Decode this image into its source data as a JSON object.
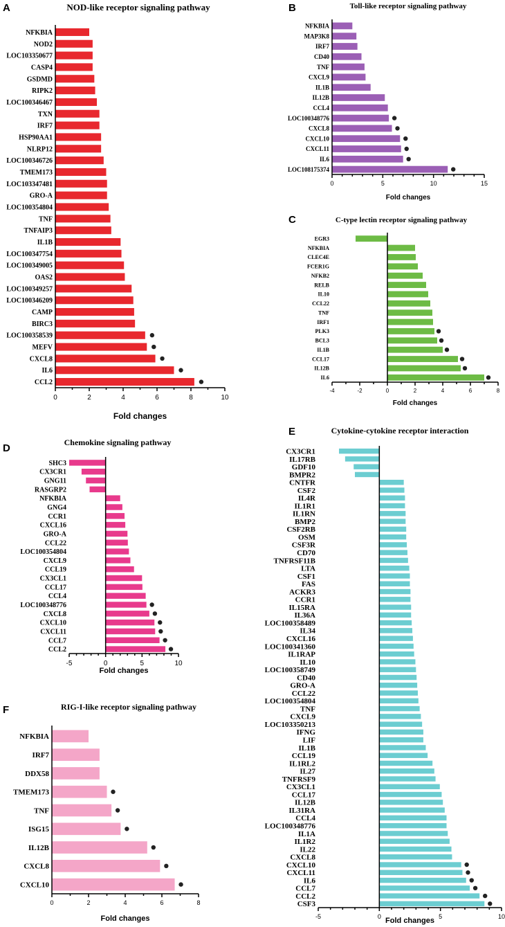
{
  "chart_data": [
    {
      "panel": "A",
      "type": "bar",
      "orientation": "horizontal",
      "title": "NOD-like receptor signaling pathway",
      "xlabel": "Fold changes",
      "xlim": [
        0,
        10
      ],
      "xticks": [
        0,
        2,
        4,
        6,
        8,
        10
      ],
      "color": "#e8282e",
      "categories": [
        "NFKBIA",
        "NOD2",
        "LOC103350677",
        "CASP4",
        "GSDMD",
        "RIPK2",
        "LOC100346467",
        "TXN",
        "IRF7",
        "HSP90AA1",
        "NLRP12",
        "LOC100346726",
        "TMEM173",
        "LOC103347481",
        "GRO-A",
        "LOC100354804",
        "TNF",
        "TNFAIP3",
        "IL1B",
        "LOC100347754",
        "LOC100349005",
        "OAS2",
        "LOC100349257",
        "LOC100346209",
        "CAMP",
        "BIRC3",
        "LOC100358539",
        "MEFV",
        "CXCL8",
        "IL6",
        "CCL2"
      ],
      "values": [
        2.0,
        2.2,
        2.2,
        2.2,
        2.3,
        2.35,
        2.45,
        2.6,
        2.6,
        2.7,
        2.7,
        2.85,
        3.0,
        3.05,
        3.05,
        3.15,
        3.25,
        3.3,
        3.85,
        3.9,
        4.05,
        4.1,
        4.5,
        4.6,
        4.65,
        4.7,
        5.3,
        5.4,
        5.9,
        7.0,
        8.2
      ],
      "marked": [
        "LOC100358539",
        "MEFV",
        "CXCL8",
        "IL6",
        "CCL2"
      ]
    },
    {
      "panel": "B",
      "type": "bar",
      "orientation": "horizontal",
      "title": "Toll-like receptor signaling pathway",
      "xlabel": "Fold changes",
      "xlim": [
        0,
        15
      ],
      "xticks": [
        0,
        5,
        10,
        15
      ],
      "color": "#9b5fb5",
      "categories": [
        "NFKBIA",
        "MAP3K8",
        "IRF7",
        "CD40",
        "TNF",
        "CXCL9",
        "IL1B",
        "IL12B",
        "CCL4",
        "LOC100348776",
        "CXCL8",
        "CXCL10",
        "CXCL11",
        "IL6",
        "LOC108175374"
      ],
      "values": [
        2.0,
        2.4,
        2.5,
        2.9,
        3.2,
        3.3,
        3.8,
        5.2,
        5.5,
        5.6,
        5.9,
        6.7,
        6.8,
        7.0,
        11.4
      ],
      "marked": [
        "LOC100348776",
        "CXCL8",
        "CXCL10",
        "CXCL11",
        "IL6",
        "LOC108175374"
      ]
    },
    {
      "panel": "C",
      "type": "bar",
      "orientation": "horizontal",
      "title": "C-type lectin receptor signaling pathway",
      "xlabel": "Fold changes",
      "xlim": [
        -4,
        8
      ],
      "xticks": [
        -4,
        -2,
        0,
        2,
        4,
        6,
        8
      ],
      "color": "#6dbb45",
      "categories": [
        "EGR3",
        "NFKBIA",
        "CLEC4E",
        "FCER1G",
        "NFKB2",
        "RELB",
        "IL10",
        "CCL22",
        "TNF",
        "IRF1",
        "PLK3",
        "BCL3",
        "IL1B",
        "CCL17",
        "IL12B",
        "IL6"
      ],
      "values": [
        -2.3,
        2.0,
        2.05,
        2.2,
        2.55,
        2.8,
        2.95,
        3.1,
        3.25,
        3.3,
        3.4,
        3.6,
        4.0,
        5.1,
        5.3,
        7.0
      ],
      "marked": [
        "PLK3",
        "BCL3",
        "IL1B",
        "CCL17",
        "IL12B",
        "IL6"
      ]
    },
    {
      "panel": "D",
      "type": "bar",
      "orientation": "horizontal",
      "title": "Chemokine signaling pathway",
      "xlabel": "Fold changes",
      "xlim": [
        -5,
        10
      ],
      "xticks": [
        -5,
        0,
        5,
        10
      ],
      "color": "#e83a8c",
      "categories": [
        "SHC3",
        "CX3CR1",
        "GNG11",
        "RASGRP2",
        "NFKBIA",
        "GNG4",
        "CCR1",
        "CXCL16",
        "GRO-A",
        "CCL22",
        "LOC100354804",
        "CXCL9",
        "CCL19",
        "CX3CL1",
        "CCL17",
        "CCL4",
        "LOC100348776",
        "CXCL8",
        "CXCL10",
        "CXCL11",
        "CCL7",
        "CCL2"
      ],
      "values": [
        -5.0,
        -3.3,
        -2.7,
        -2.2,
        2.0,
        2.3,
        2.6,
        2.7,
        3.0,
        3.05,
        3.2,
        3.4,
        3.9,
        5.0,
        5.05,
        5.5,
        5.6,
        6.0,
        6.7,
        6.8,
        7.4,
        8.2
      ],
      "marked": [
        "LOC100348776",
        "CXCL8",
        "CXCL10",
        "CXCL11",
        "CCL7",
        "CCL2"
      ]
    },
    {
      "panel": "E",
      "type": "bar",
      "orientation": "horizontal",
      "title": "Cytokine-cytokine receptor interaction",
      "xlabel": "Fold changes",
      "xlim": [
        -5,
        10
      ],
      "xticks": [
        -5,
        0,
        5,
        10
      ],
      "color": "#6ccdd1",
      "categories": [
        "CX3CR1",
        "IL17RB",
        "GDF10",
        "BMPR2",
        "CNTFR",
        "CSF2",
        "IL4R",
        "IL1R1",
        "IL1RN",
        "BMP2",
        "CSF2RB",
        "OSM",
        "CSF3R",
        "CD70",
        "TNFRSF11B",
        "LTA",
        "CSF1",
        "FAS",
        "ACKR3",
        "CCR1",
        "IL15RA",
        "IL36A",
        "LOC100358489",
        "IL34",
        "CXCL16",
        "LOC100341360",
        "IL1RAP",
        "IL10",
        "LOC100358749",
        "CD40",
        "GRO-A",
        "CCL22",
        "LOC100354804",
        "TNF",
        "CXCL9",
        "LOC103350213",
        "IFNG",
        "LIF",
        "IL1B",
        "CCL19",
        "IL1RL2",
        "IL27",
        "TNFRSF9",
        "CX3CL1",
        "CCL17",
        "IL12B",
        "IL31RA",
        "CCL4",
        "LOC100348776",
        "IL1A",
        "IL1R2",
        "IL22",
        "CXCL8",
        "CXCL10",
        "CXCL11",
        "IL6",
        "CCL7",
        "CCL2",
        "CSF3"
      ],
      "values": [
        -3.3,
        -2.8,
        -2.1,
        -2.0,
        2.0,
        2.05,
        2.1,
        2.1,
        2.15,
        2.15,
        2.2,
        2.2,
        2.25,
        2.3,
        2.35,
        2.45,
        2.5,
        2.5,
        2.55,
        2.55,
        2.6,
        2.6,
        2.65,
        2.7,
        2.75,
        2.8,
        2.85,
        2.95,
        3.0,
        3.05,
        3.1,
        3.15,
        3.2,
        3.3,
        3.4,
        3.5,
        3.6,
        3.6,
        3.8,
        3.95,
        4.35,
        4.5,
        4.6,
        4.95,
        5.1,
        5.2,
        5.35,
        5.5,
        5.5,
        5.6,
        5.75,
        5.9,
        5.95,
        6.7,
        6.8,
        7.1,
        7.4,
        8.2,
        8.6
      ],
      "marked": [
        "CXCL10",
        "CXCL11",
        "IL6",
        "CCL7",
        "CCL2",
        "CSF3"
      ]
    },
    {
      "panel": "F",
      "type": "bar",
      "orientation": "horizontal",
      "title": "RIG-I-like receptor signaling pathway",
      "xlabel": "Fold changes",
      "xlim": [
        0,
        8
      ],
      "xticks": [
        0,
        2,
        4,
        6,
        8
      ],
      "color": "#f4a6c8",
      "categories": [
        "NFKBIA",
        "IRF7",
        "DDX58",
        "TMEM173",
        "TNF",
        "ISG15",
        "IL12B",
        "CXCL8",
        "CXCL10"
      ],
      "values": [
        2.0,
        2.6,
        2.6,
        3.0,
        3.25,
        3.75,
        5.2,
        5.9,
        6.7
      ],
      "marked": [
        "TMEM173",
        "TNF",
        "ISG15",
        "IL12B",
        "CXCL8",
        "CXCL10"
      ]
    }
  ]
}
